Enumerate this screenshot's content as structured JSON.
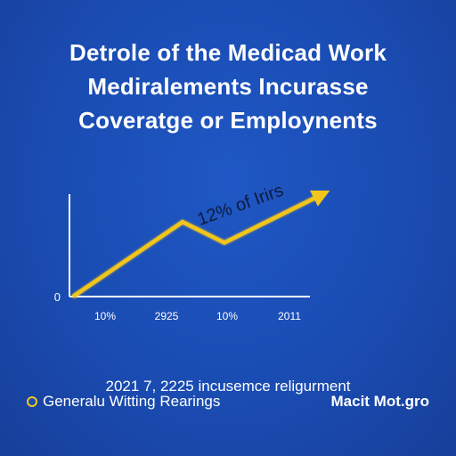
{
  "title_lines": [
    "Detrole of the Medicad Work",
    "Mediralements Incurasse",
    "Coveratge or Employnents"
  ],
  "caption": "2021 7, 2225 incusemce religurment",
  "footer": {
    "left_label": "Generalu Witting Rearings",
    "left_icon": "circle-bullet-icon",
    "right_label": "Macit Mot.gro"
  },
  "colors": {
    "background": "#1a4cb2",
    "line": "#f2c51d",
    "axis": "#ffffff",
    "text": "#ffffff"
  },
  "chart_data": {
    "type": "line",
    "x_tick_labels": [
      "10%",
      "2925",
      "10%",
      "2011"
    ],
    "y_tick_labels": [
      "0"
    ],
    "series": [
      {
        "values": [
          0,
          0.72,
          0.52,
          1.0
        ],
        "color": "#f2c51d",
        "arrow_end": true
      }
    ],
    "ylim": [
      0,
      1.1
    ],
    "annotation": "12% of Irirs",
    "grid": false,
    "legend": "none"
  }
}
